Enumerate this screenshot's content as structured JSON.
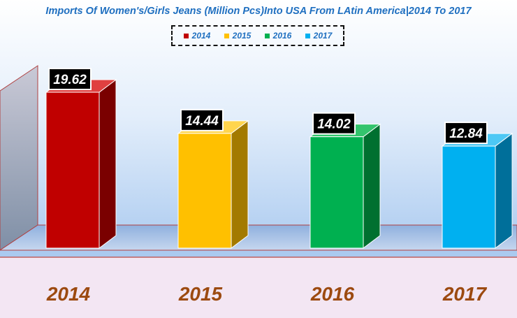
{
  "chart_data": {
    "type": "bar",
    "title": "Imports Of Women's/Girls Jeans (Million Pcs)Into USA From LAtin America|2014 To 2017",
    "categories": [
      "2014",
      "2015",
      "2016",
      "2017"
    ],
    "values": [
      19.62,
      14.44,
      14.02,
      12.84
    ],
    "series": [
      {
        "name": "2014",
        "values": [
          19.62,
          null,
          null,
          null
        ]
      },
      {
        "name": "2015",
        "values": [
          null,
          14.44,
          null,
          null
        ]
      },
      {
        "name": "2016",
        "values": [
          null,
          null,
          14.02,
          null
        ]
      },
      {
        "name": "2017",
        "values": [
          null,
          null,
          null,
          12.84
        ]
      }
    ],
    "colors": [
      "#c00000",
      "#ffc000",
      "#00b050",
      "#00b0f0"
    ],
    "side_colors": [
      "#7a0000",
      "#a37a00",
      "#007030",
      "#006f9a"
    ],
    "top_colors": [
      "#e04040",
      "#ffd54d",
      "#33c46d",
      "#4dc8f5"
    ],
    "label_colors": {
      "data_label_bg": "#000000",
      "data_label_text": "#ffffff",
      "category_text": "#9c4a10",
      "title": "#1f6fc0"
    },
    "xlabel": "",
    "ylabel": "",
    "legend_position": "top-center",
    "ylim": [
      0,
      24
    ],
    "grid": false
  }
}
